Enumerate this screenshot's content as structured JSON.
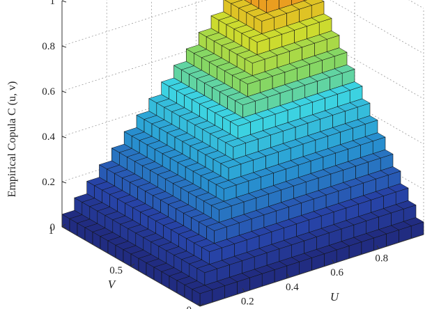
{
  "chart_data": {
    "type": "surface3d",
    "title": "",
    "zlabel": "Empirical Copula C (u, v)",
    "xlabel": "U",
    "ylabel": "V",
    "x_ticks": [
      "0",
      "0.2",
      "0.4",
      "0.6",
      "0.8"
    ],
    "y_ticks": [
      "0",
      "0.5",
      "1"
    ],
    "z_ticks": [
      "0",
      "0.2",
      "0.4",
      "0.6",
      "0.8",
      "1"
    ],
    "xlim": [
      0,
      1
    ],
    "ylim": [
      0,
      1
    ],
    "zlim": [
      0,
      1
    ],
    "grid": true,
    "colormap": "jet",
    "grid_resolution": 18,
    "surface_function": "C(u,v) = min(u, v) (comonotone step copula)",
    "sample_points": [
      {
        "u": 0,
        "v": 0,
        "c": 0
      },
      {
        "u": 0.5,
        "v": 0.5,
        "c": 0.5
      },
      {
        "u": 1,
        "v": 1,
        "c": 1
      },
      {
        "u": 1,
        "v": 0.5,
        "c": 0.5
      },
      {
        "u": 0.5,
        "v": 1,
        "c": 0.5
      },
      {
        "u": 1,
        "v": 0,
        "c": 0
      },
      {
        "u": 0,
        "v": 1,
        "c": 0
      }
    ],
    "colors": {
      "low": "#1f2a6b",
      "mid": "#2fb7cf",
      "mid_high": "#9fd33a",
      "high": "#d81e1e",
      "edge": "#111111"
    }
  }
}
